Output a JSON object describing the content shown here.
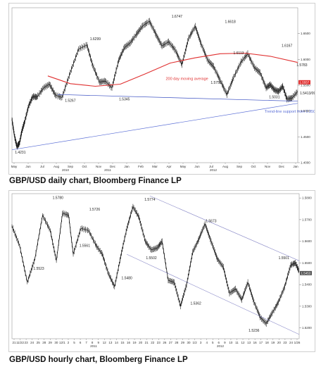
{
  "captions": {
    "daily": "GBP/USD daily chart, Bloomberg Finance LP",
    "hourly": "GBP/USD hourly chart, Bloomberg Finance LP"
  },
  "chart_data": [
    {
      "type": "line",
      "title": "GBP/USD daily chart, Bloomberg Finance LP",
      "xlabel": "",
      "ylabel": "",
      "ylim": [
        1.4,
        1.7
      ],
      "y_ticks": [
        "1.6500",
        "1.6000",
        "1.5500",
        "1.5000",
        "1.4500",
        "1.4000"
      ],
      "x_tick_labels": [
        "May",
        "Jun",
        "Jul",
        "Aug",
        "Sep",
        "Oct",
        "Nov",
        "Dec",
        "Jan",
        "Feb",
        "Mar",
        "Apr",
        "May",
        "Jun",
        "Jul",
        "Aug",
        "Sep",
        "Oct",
        "Nov",
        "Dec",
        "Jan"
      ],
      "year_labels": [
        "2010",
        "2011",
        "2012"
      ],
      "last_price_label": "1.5557",
      "grid": false,
      "series": [
        {
          "name": "",
          "x": [
            0,
            3,
            6,
            9,
            12,
            15,
            20,
            25,
            30,
            38,
            45,
            52,
            60,
            70,
            80,
            90,
            97,
            105,
            112,
            120,
            128,
            135,
            142,
            150,
            157,
            165,
            173,
            180,
            188,
            196,
            204,
            212,
            220,
            227,
            235,
            242,
            250,
            258,
            266,
            275,
            283,
            291,
            298,
            305,
            310,
            315,
            320,
            325,
            330,
            336,
            343
          ],
          "y": [
            1.484,
            1.452,
            1.431,
            1.438,
            1.462,
            1.478,
            1.51,
            1.528,
            1.527,
            1.545,
            1.552,
            1.531,
            1.526,
            1.575,
            1.62,
            1.628,
            1.588,
            1.556,
            1.558,
            1.545,
            1.598,
            1.623,
            1.632,
            1.65,
            1.665,
            1.674,
            1.648,
            1.626,
            1.634,
            1.618,
            1.59,
            1.641,
            1.664,
            1.63,
            1.598,
            1.586,
            1.559,
            1.532,
            1.565,
            1.595,
            1.611,
            1.584,
            1.574,
            1.545,
            1.551,
            1.541,
            1.538,
            1.548,
            1.523,
            1.525,
            1.538
          ]
        },
        {
          "name": "200 day moving average",
          "x": [
            43,
            70,
            100,
            130,
            160,
            190,
            220,
            250,
            280,
            310,
            343
          ],
          "y": [
            1.568,
            1.553,
            1.548,
            1.552,
            1.572,
            1.593,
            1.603,
            1.611,
            1.612,
            1.606,
            1.594
          ]
        },
        {
          "name": "",
          "x": [
            55,
            343
          ],
          "y": [
            1.532,
            1.519
          ]
        },
        {
          "name": "Trend-line support from 1.3500",
          "x": [
            0,
            343
          ],
          "y": [
            1.425,
            1.515
          ]
        }
      ],
      "annotations": [
        "1.4231",
        "1.5267",
        "1.6299",
        "1.5345",
        "1.6747",
        "1.5750",
        "1.6113",
        "1.6618",
        "1.5031",
        "1.6167",
        "1.5783",
        "1.5413/09",
        "1.5384",
        "1.5235",
        "200 day moving average",
        "Trend-line support from 1.3500"
      ]
    },
    {
      "type": "line",
      "title": "GBP/USD hourly chart, Bloomberg Finance LP",
      "xlabel": "",
      "ylabel": "",
      "ylim": [
        1.515,
        1.582
      ],
      "y_ticks": [
        "1.5800",
        "1.5700",
        "1.5600",
        "1.5500",
        "1.5400",
        "1.5300",
        "1.5200"
      ],
      "x_tick_labels": [
        "21",
        "11/22",
        "23",
        "24",
        "25",
        "28",
        "29",
        "30",
        "12/1",
        "2",
        "5",
        "6",
        "7",
        "8",
        "9",
        "12",
        "13",
        "14",
        "15",
        "16",
        "19",
        "20",
        "21",
        "22",
        "23",
        "26",
        "27",
        "28",
        "29",
        "30",
        "1/2",
        "3",
        "4",
        "5",
        "6",
        "9",
        "10",
        "11",
        "12",
        "13",
        "16",
        "17",
        "18",
        "19",
        "20",
        "23",
        "24",
        "1/26"
      ],
      "year_labels": [
        "2011",
        "2012"
      ],
      "last_price_label": "1.5453",
      "grid": false,
      "series": [
        {
          "name": "",
          "x": [
            0,
            10,
            20,
            30,
            40,
            50,
            58,
            66,
            74,
            80,
            90,
            100,
            110,
            118,
            126,
            134,
            142,
            150,
            158,
            166,
            174,
            182,
            190,
            196,
            204,
            212,
            220,
            228,
            236,
            244,
            252,
            260,
            268,
            276,
            284,
            292,
            300,
            308,
            316,
            324,
            332,
            340,
            348,
            356,
            364,
            370,
            375
          ],
          "y": [
            1.567,
            1.558,
            1.541,
            1.552,
            1.572,
            1.565,
            1.551,
            1.573,
            1.572,
            1.554,
            1.566,
            1.565,
            1.558,
            1.554,
            1.545,
            1.539,
            1.553,
            1.566,
            1.576,
            1.571,
            1.56,
            1.556,
            1.557,
            1.56,
            1.542,
            1.541,
            1.53,
            1.54,
            1.555,
            1.561,
            1.568,
            1.56,
            1.552,
            1.548,
            1.536,
            1.538,
            1.533,
            1.541,
            1.532,
            1.525,
            1.522,
            1.527,
            1.532,
            1.539,
            1.549,
            1.55,
            1.546
          ]
        },
        {
          "name": "",
          "x": [
            180,
            375
          ],
          "y": [
            1.581,
            1.551
          ]
        },
        {
          "name": "",
          "x": [
            150,
            375
          ],
          "y": [
            1.554,
            1.517
          ]
        }
      ],
      "annotations": [
        "1.5780",
        "1.5726",
        "1.5774",
        "1.5561",
        "1.5502",
        "1.5673",
        "1.5523",
        "1.5480",
        "1.5362",
        "1.5501",
        "1.5236"
      ]
    }
  ]
}
